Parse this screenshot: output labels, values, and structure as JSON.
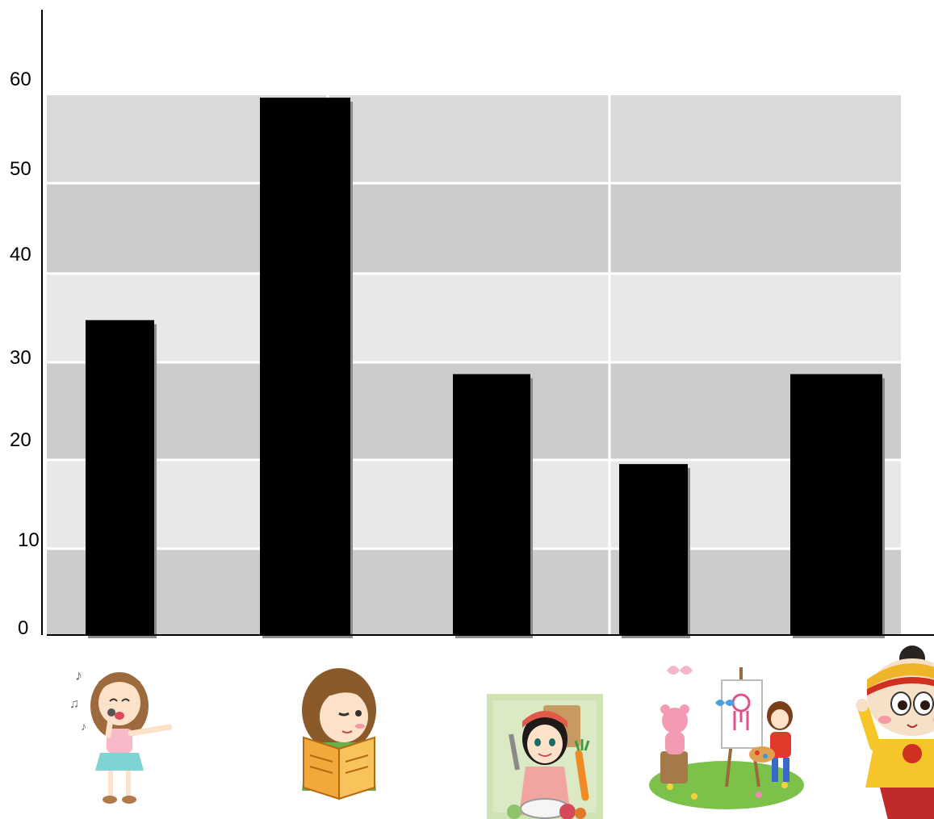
{
  "chart_data": {
    "type": "bar",
    "title": "",
    "xlabel": "",
    "ylabel": "",
    "ylim": [
      0,
      60
    ],
    "y_ticks": [
      "0",
      "10",
      "20",
      "30",
      "40",
      "50",
      "60"
    ],
    "categories": [
      "singing",
      "reading",
      "cooking",
      "painting",
      "dancing"
    ],
    "values": [
      35,
      60,
      29,
      19,
      29
    ],
    "category_icons": [
      "singing-girl-icon",
      "reading-girl-icon",
      "cooking-girl-icon",
      "painting-kids-icon",
      "waving-child-icon"
    ],
    "grid": true,
    "legend": "none",
    "colors": {
      "bar": "#000000",
      "bar_shadow": "#8c8c8c",
      "band_dark": "#cccccc",
      "band_mid": "#d9d9d9",
      "band_light": "#e8e8e8",
      "axis": "#000000"
    }
  }
}
